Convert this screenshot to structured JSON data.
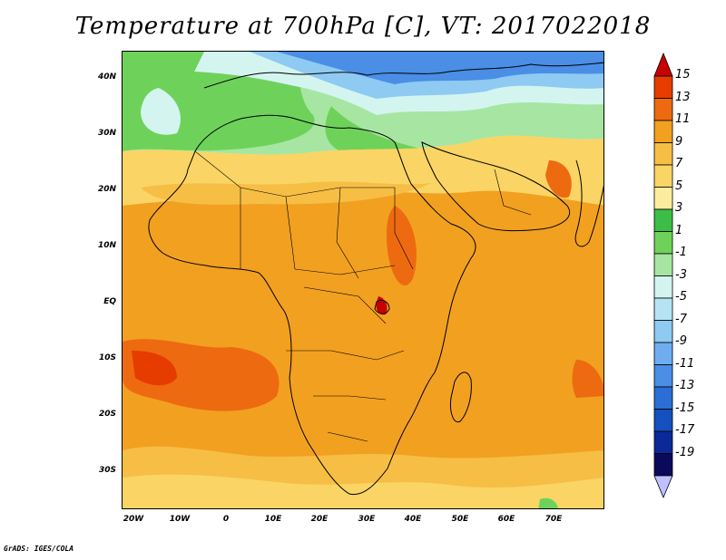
{
  "title": "Temperature at 700hPa [C], VT: 2017022018",
  "credit": "GrADS: IGES/COLA",
  "map": {
    "lat_labels": [
      "40N",
      "30N",
      "20N",
      "10N",
      "EQ",
      "10S",
      "20S",
      "30S"
    ],
    "lon_labels": [
      "20W",
      "10W",
      "0",
      "10E",
      "20E",
      "30E",
      "40E",
      "50E",
      "60E",
      "70E"
    ]
  },
  "colorbar": {
    "labels": [
      "15",
      "13",
      "11",
      "9",
      "7",
      "5",
      "3",
      "1",
      "-1",
      "-3",
      "-5",
      "-7",
      "-9",
      "-11",
      "-13",
      "-15",
      "-17",
      "-19"
    ],
    "colors": [
      "#c80000",
      "#e63c00",
      "#ee6a10",
      "#f2a020",
      "#f6be44",
      "#fad464",
      "#fcec9e",
      "#3cbe46",
      "#6ed25a",
      "#a6e6a2",
      "#d4f4f0",
      "#b4e4f4",
      "#8ecaf2",
      "#6eaef0",
      "#4a8ee6",
      "#2a6ed6",
      "#1450c0",
      "#0a2a9a",
      "#0a0a5a",
      "#c0c0ff"
    ]
  }
}
